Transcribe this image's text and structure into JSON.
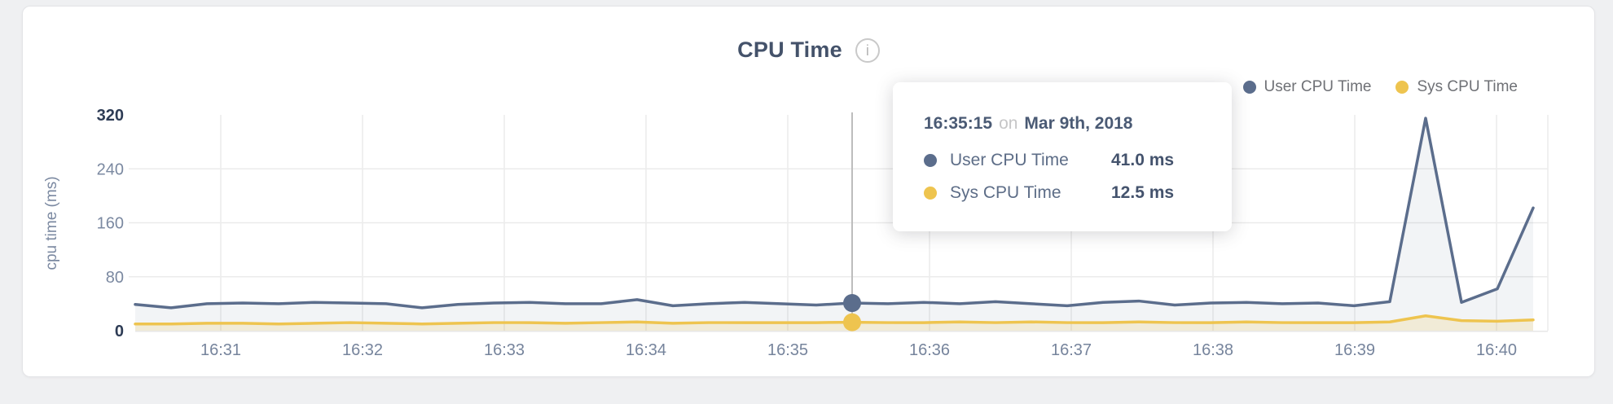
{
  "card": {
    "title": "CPU Time",
    "info_glyph": "i"
  },
  "legend": [
    {
      "label": "User CPU Time",
      "color": "#5b6d8c"
    },
    {
      "label": "Sys CPU Time",
      "color": "#eec44f"
    }
  ],
  "tooltip": {
    "time": "16:35:15",
    "conjunction": "on",
    "date": "Mar 9th, 2018",
    "rows": [
      {
        "label": "User CPU Time",
        "value": "41.0 ms",
        "color": "#5b6d8c"
      },
      {
        "label": "Sys CPU Time",
        "value": "12.5 ms",
        "color": "#eec44f"
      }
    ]
  },
  "chart_data": {
    "type": "area",
    "title": "CPU Time",
    "xlabel": "",
    "ylabel": "cpu time (ms)",
    "ylim": [
      0,
      320
    ],
    "yticks": [
      0,
      80,
      160,
      240,
      320
    ],
    "xticks": [
      "16:31",
      "16:32",
      "16:33",
      "16:34",
      "16:35",
      "16:36",
      "16:37",
      "16:38",
      "16:39",
      "16:40"
    ],
    "grid": true,
    "legend_position": "top-right",
    "hover_index": 20,
    "hover_time": "16:35:15",
    "series": [
      {
        "name": "User CPU Time",
        "color": "#5b6d8c",
        "fill_opacity": 0.08,
        "values": [
          39,
          34,
          40,
          41,
          40,
          42,
          41,
          40,
          34,
          39,
          41,
          42,
          40,
          40,
          46,
          37,
          40,
          42,
          40,
          38,
          41,
          40,
          42,
          40,
          43,
          40,
          37,
          42,
          44,
          38,
          41,
          42,
          40,
          41,
          37,
          43,
          315,
          42,
          62,
          182
        ]
      },
      {
        "name": "Sys CPU Time",
        "color": "#eec44f",
        "fill_opacity": 0.18,
        "values": [
          10,
          10,
          11,
          11,
          10,
          11,
          12,
          11,
          10,
          11,
          12,
          12,
          11,
          12,
          13,
          11,
          12,
          12,
          12,
          12,
          12.5,
          12,
          12,
          13,
          12,
          13,
          12,
          12,
          13,
          12,
          12,
          13,
          12,
          12,
          12,
          13,
          22,
          15,
          14,
          16
        ]
      }
    ]
  }
}
